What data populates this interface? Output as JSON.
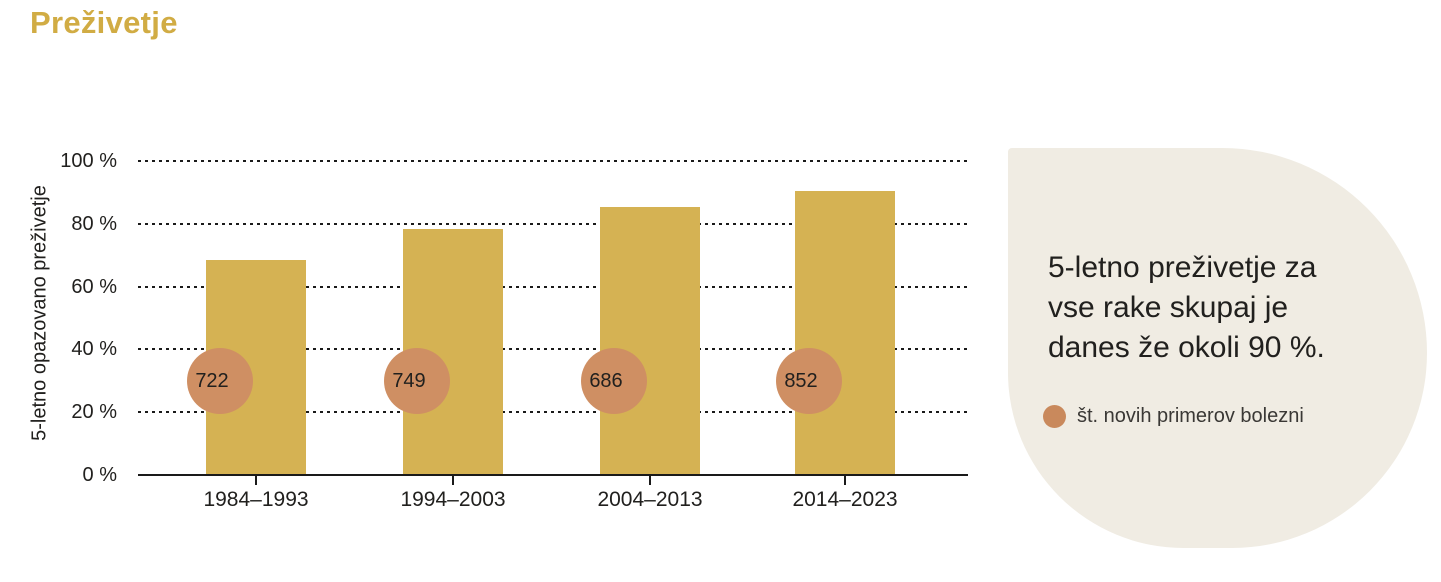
{
  "page": {
    "title": "Preživetje"
  },
  "colors": {
    "title-gold": "#d1ac44",
    "bar-gold": "#d5b253",
    "bubble": "#cf8f63",
    "legend-dot": "#c9895c",
    "panel-bg": "#f0ece3",
    "ink": "#21201e",
    "line": "#1a1a1a",
    "muted-ink": "#3a3835"
  },
  "chart_data": {
    "type": "bar",
    "title": "Preživetje",
    "categories": [
      "1984–1993",
      "1994–2003",
      "2004–2013",
      "2014–2023"
    ],
    "series": [
      {
        "name": "5-letno opazovano preživetje (%)",
        "values": [
          68,
          78,
          85,
          90
        ]
      },
      {
        "name": "št. novih primerov bolezni",
        "values": [
          722,
          749,
          686,
          852
        ]
      }
    ],
    "ylabel": "5-letno opazovano preživetje",
    "xlabel": "",
    "ylim": [
      0,
      100
    ],
    "ytick_labels": [
      "0 %",
      "20 %",
      "40 %",
      "60 %",
      "80 %",
      "100 %"
    ],
    "grid": "horizontal-dashed",
    "legend_position": "right-callout"
  },
  "callout": {
    "text_lines": [
      "5-letno preživetje za",
      "vse rake skupaj je",
      "danes že okoli 90 %."
    ],
    "legend_label": "št. novih primerov bolezni"
  }
}
